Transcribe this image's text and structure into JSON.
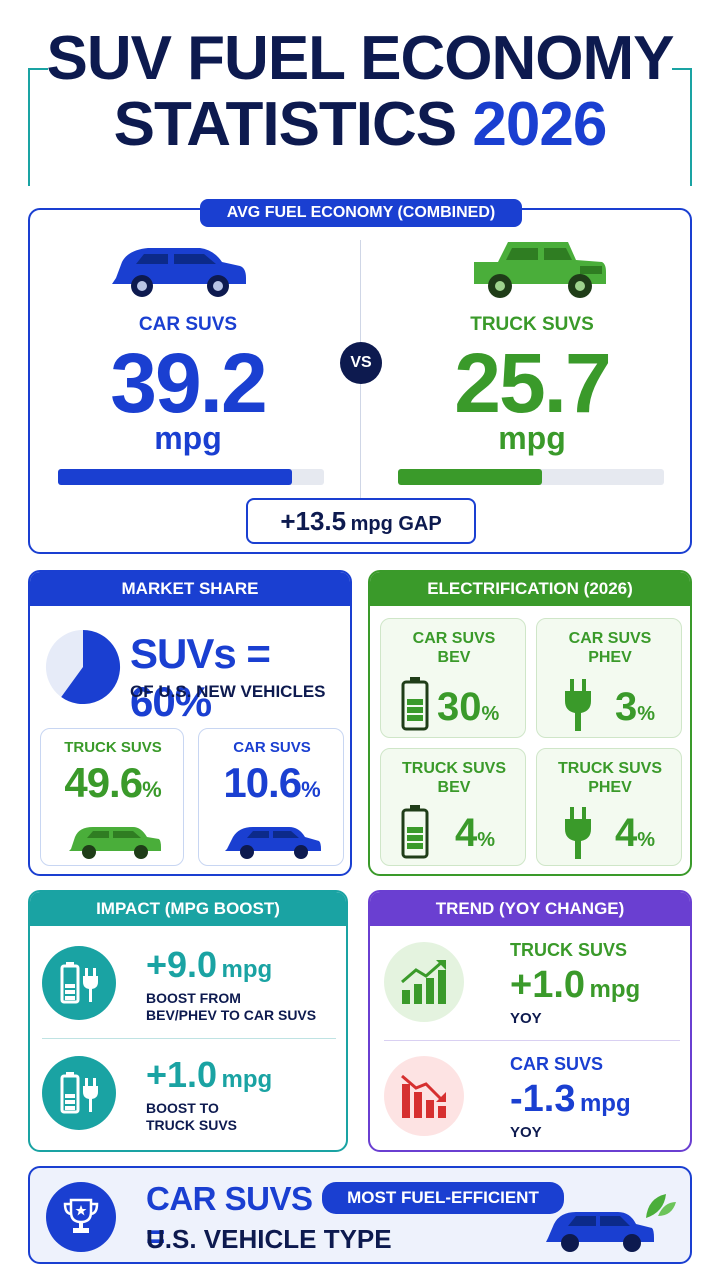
{
  "title": {
    "line1": "SUV FUEL ECONOMY",
    "line2_text": "STATISTICS",
    "line2_year": "2026"
  },
  "avg": {
    "header": "AVG FUEL ECONOMY (COMBINED)",
    "car": {
      "label": "CAR SUVS",
      "value": "39.2",
      "unit": "mpg",
      "bar_fraction": 0.88
    },
    "vs": "VS",
    "truck": {
      "label": "TRUCK SUVS",
      "value": "25.7",
      "unit": "mpg",
      "bar_fraction": 0.54
    },
    "gap": {
      "value": "+13.5",
      "unit": "mpg GAP"
    }
  },
  "market": {
    "header": "MARKET SHARE",
    "headline": "SUVs = 60%",
    "sub": "OF U.S. NEW VEHICLES",
    "pie_fraction": 0.6,
    "truck": {
      "label": "TRUCK SUVS",
      "value": "49.6",
      "pct": "%"
    },
    "car": {
      "label": "CAR SUVS",
      "value": "10.6",
      "pct": "%"
    }
  },
  "electrification": {
    "header": "ELECTRIFICATION (2026)",
    "items": [
      {
        "label1": "CAR SUVS",
        "label2": "BEV",
        "value": "30",
        "pct": "%"
      },
      {
        "label1": "CAR SUVS",
        "label2": "PHEV",
        "value": "3",
        "pct": "%"
      },
      {
        "label1": "TRUCK SUVS",
        "label2": "BEV",
        "value": "4",
        "pct": "%"
      },
      {
        "label1": "TRUCK SUVS",
        "label2": "PHEV",
        "value": "4",
        "pct": "%"
      }
    ]
  },
  "impact": {
    "header": "IMPACT (MPG BOOST)",
    "rows": [
      {
        "value": "+9.0",
        "unit": "mpg",
        "desc1": "BOOST FROM",
        "desc2": "BEV/PHEV TO CAR SUVS"
      },
      {
        "value": "+1.0",
        "unit": "mpg",
        "desc1": "BOOST TO",
        "desc2": "TRUCK SUVS"
      }
    ]
  },
  "trend": {
    "header": "TREND (YOY CHANGE)",
    "rows": [
      {
        "label": "TRUCK SUVS",
        "value": "+1.0",
        "unit": "mpg",
        "sub": "YOY"
      },
      {
        "label": "CAR SUVS",
        "value": "-1.3",
        "unit": "mpg",
        "sub": "YOY"
      }
    ]
  },
  "footer": {
    "lead": "CAR SUVS =",
    "badge": "MOST FUEL-EFFICIENT",
    "line2": "U.S. VEHICLE TYPE"
  },
  "colors": {
    "blue": "#1a3fd1",
    "green": "#3a9a2a",
    "teal": "#1aa3a3",
    "purple": "#6a3fd1",
    "navy": "#0d1a4f"
  }
}
